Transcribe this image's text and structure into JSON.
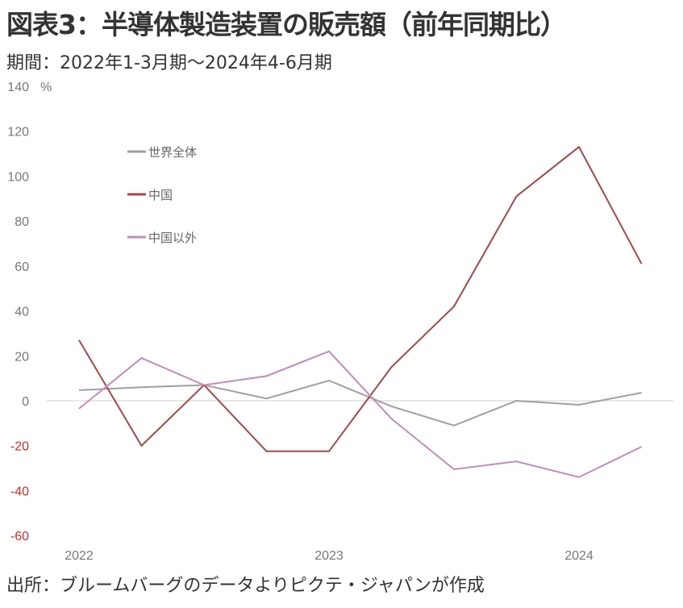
{
  "title": "図表3：半導体製造装置の販売額（前年同期比）",
  "subtitle": "期間：2022年1-3月期～2024年4-6月期",
  "source": "出所：ブルームバーグのデータよりピクテ・ジャパンが作成",
  "chart_data": {
    "type": "line",
    "title": "図表3：半導体製造装置の販売額（前年同期比）",
    "ylabel": "%",
    "xlabel": "",
    "ylim": [
      -60,
      140
    ],
    "yticks": [
      140,
      120,
      100,
      80,
      60,
      40,
      20,
      0,
      -20,
      -40,
      -60
    ],
    "x": [
      "2022Q1",
      "2022Q2",
      "2022Q3",
      "2022Q4",
      "2023Q1",
      "2023Q2",
      "2023Q3",
      "2023Q4",
      "2024Q1",
      "2024Q2"
    ],
    "xtick_labels": [
      {
        "index": 0,
        "label": "2022"
      },
      {
        "index": 4,
        "label": "2023"
      },
      {
        "index": 8,
        "label": "2024"
      }
    ],
    "legend_position": "top-left",
    "series": [
      {
        "name": "世界全体",
        "color": "#a0a0a0",
        "values": [
          4.7,
          6,
          7,
          1,
          9,
          -2.5,
          -11,
          0,
          -1.8,
          3.6
        ]
      },
      {
        "name": "中国",
        "color": "#a0484a",
        "values": [
          27,
          -20,
          7,
          -22.5,
          -22.5,
          15,
          42,
          91,
          113,
          61
        ]
      },
      {
        "name": "中国以外",
        "color": "#c08cb8",
        "values": [
          -3.5,
          19,
          7,
          11,
          22,
          -8,
          -30.5,
          -27,
          -34,
          -20.5
        ]
      }
    ]
  }
}
